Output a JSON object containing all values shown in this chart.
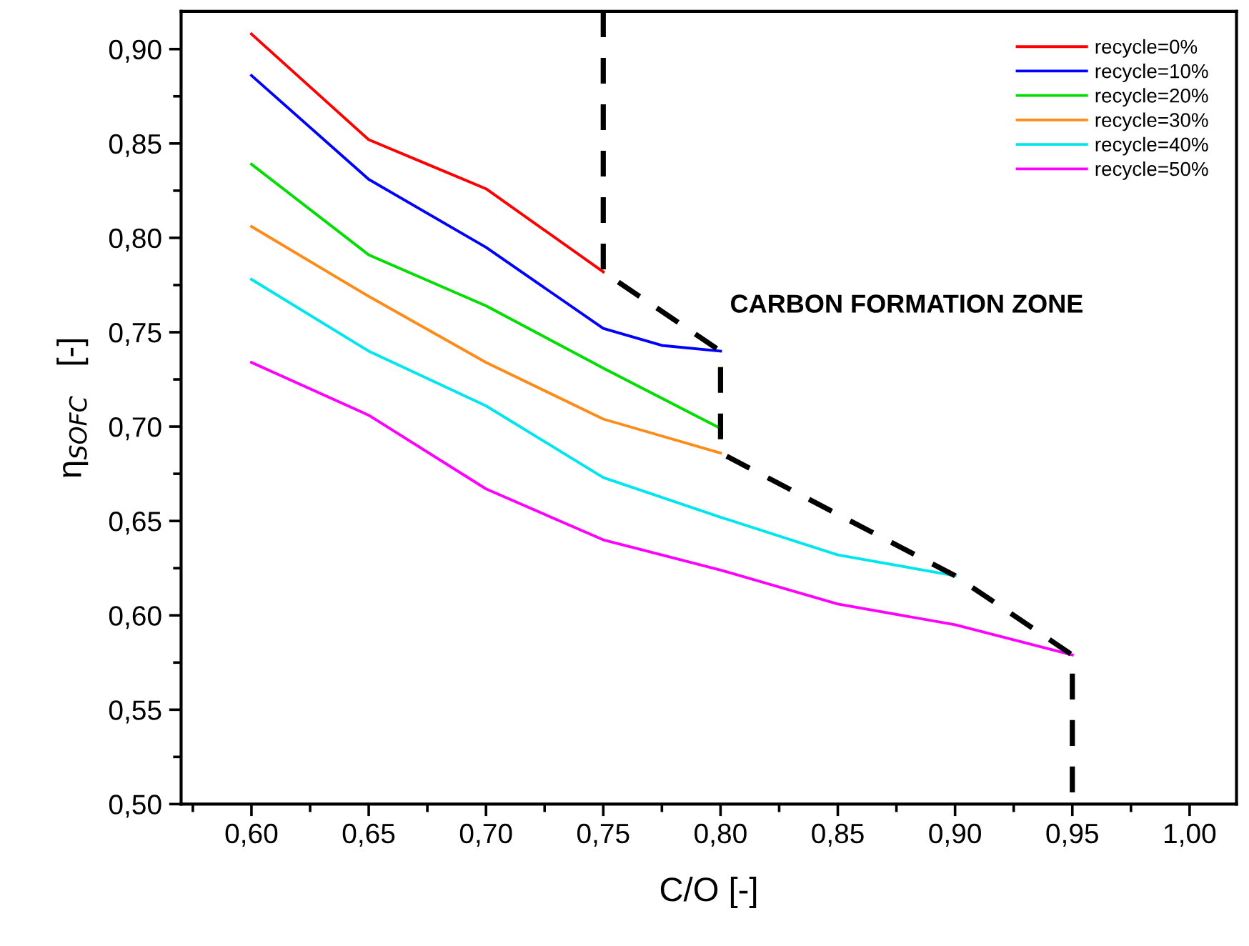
{
  "chart_data": {
    "type": "line",
    "xlabel": "C/O [-]",
    "ylabel": "η$_{SOFC}$   [-]",
    "xlim": [
      0.57,
      1.02
    ],
    "ylim": [
      0.5,
      0.92
    ],
    "xticks": [
      {
        "value": 0.6,
        "label": "0,60"
      },
      {
        "value": 0.65,
        "label": "0,65"
      },
      {
        "value": 0.7,
        "label": "0,70"
      },
      {
        "value": 0.75,
        "label": "0,75"
      },
      {
        "value": 0.8,
        "label": "0,80"
      },
      {
        "value": 0.85,
        "label": "0,85"
      },
      {
        "value": 0.9,
        "label": "0,90"
      },
      {
        "value": 0.95,
        "label": "0,95"
      },
      {
        "value": 1.0,
        "label": "1,00"
      }
    ],
    "yticks": [
      {
        "value": 0.5,
        "label": "0,50"
      },
      {
        "value": 0.55,
        "label": "0,55"
      },
      {
        "value": 0.6,
        "label": "0,60"
      },
      {
        "value": 0.65,
        "label": "0,65"
      },
      {
        "value": 0.7,
        "label": "0,70"
      },
      {
        "value": 0.75,
        "label": "0,75"
      },
      {
        "value": 0.8,
        "label": "0,80"
      },
      {
        "value": 0.85,
        "label": "0,85"
      },
      {
        "value": 0.9,
        "label": "0,90"
      }
    ],
    "grid": false,
    "legend": "top right",
    "marker": "none",
    "line_style": "solid",
    "annotations": [
      "CARBON FORMATION ZONE"
    ],
    "series": [
      {
        "name": "recycle=0%",
        "color": "#ff0000",
        "x": [
          0.6,
          0.65,
          0.675,
          0.7,
          0.75
        ],
        "values": [
          0.908,
          0.852,
          0.839,
          0.826,
          0.782
        ]
      },
      {
        "name": "recycle=10%",
        "color": "#0000ff",
        "x": [
          0.6,
          0.65,
          0.7,
          0.75,
          0.775,
          0.8
        ],
        "values": [
          0.886,
          0.831,
          0.795,
          0.752,
          0.743,
          0.74
        ]
      },
      {
        "name": "recycle=20%",
        "color": "#00dd00",
        "x": [
          0.6,
          0.65,
          0.7,
          0.75,
          0.8
        ],
        "values": [
          0.839,
          0.791,
          0.764,
          0.731,
          0.699
        ]
      },
      {
        "name": "recycle=30%",
        "color": "#ff8c1a",
        "x": [
          0.6,
          0.65,
          0.7,
          0.75,
          0.8
        ],
        "values": [
          0.806,
          0.769,
          0.734,
          0.704,
          0.686
        ]
      },
      {
        "name": "recycle=40%",
        "color": "#00e5ee",
        "x": [
          0.6,
          0.65,
          0.7,
          0.75,
          0.8,
          0.85,
          0.9
        ],
        "values": [
          0.778,
          0.74,
          0.711,
          0.673,
          0.652,
          0.632,
          0.621
        ]
      },
      {
        "name": "recycle=50%",
        "color": "#ff00ff",
        "x": [
          0.6,
          0.65,
          0.7,
          0.75,
          0.8,
          0.85,
          0.9,
          0.95
        ],
        "values": [
          0.734,
          0.706,
          0.667,
          0.64,
          0.624,
          0.606,
          0.595,
          0.579
        ]
      },
      {
        "color": "#000000",
        "line_style": "dashed",
        "x": [
          0.75,
          0.75,
          0.8,
          0.8,
          0.8,
          0.9,
          0.95,
          0.95
        ],
        "values": [
          0.92,
          0.782,
          0.74,
          0.699,
          0.686,
          0.621,
          0.579,
          0.5
        ]
      }
    ]
  }
}
